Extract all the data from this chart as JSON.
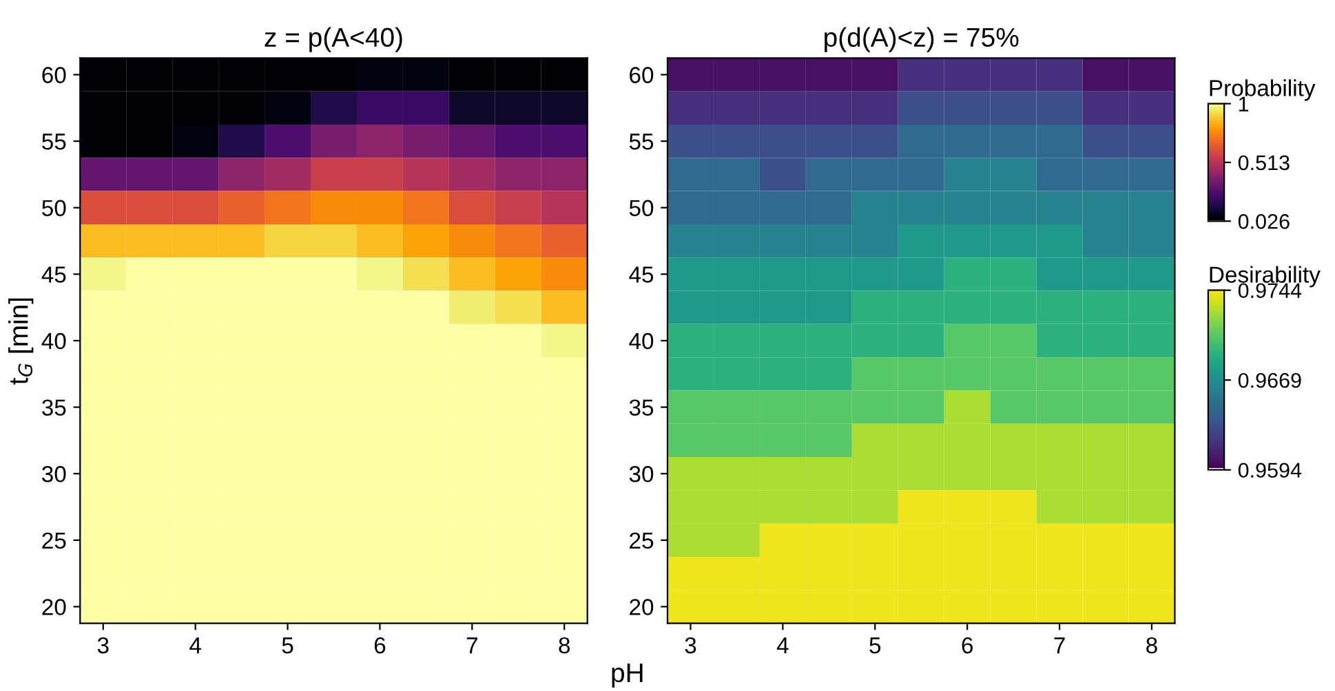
{
  "chart_data": [
    {
      "type": "heatmap",
      "title": "z = p(A<40)",
      "xlabel": "pH",
      "ylabel": "t$_{G}$ [min]",
      "clabel": "Probability",
      "categories": [
        "3",
        null,
        "4",
        null,
        "5",
        null,
        "6",
        null,
        "7",
        null,
        "8"
      ],
      "y_categories": [
        "60",
        null,
        "55",
        null,
        "50",
        null,
        "45",
        null,
        "40",
        null,
        "35",
        null,
        "30",
        null,
        "25",
        null,
        "20"
      ],
      "clim": [
        0.026,
        1
      ],
      "cticks": [
        0.026,
        0.513,
        1
      ],
      "cells": [
        [
          0.026,
          0.026,
          0.026,
          0.026,
          0.026,
          0.026,
          0.05,
          0.05,
          0.026,
          0.026,
          0.026
        ],
        [
          0.026,
          0.026,
          0.026,
          0.026,
          0.05,
          0.15,
          0.2,
          0.2,
          0.1,
          0.1,
          0.1
        ],
        [
          0.026,
          0.026,
          0.05,
          0.15,
          0.25,
          0.35,
          0.4,
          0.35,
          0.3,
          0.25,
          0.25
        ],
        [
          0.3,
          0.3,
          0.3,
          0.4,
          0.45,
          0.55,
          0.55,
          0.5,
          0.45,
          0.4,
          0.4
        ],
        [
          0.6,
          0.6,
          0.6,
          0.65,
          0.7,
          0.75,
          0.75,
          0.7,
          0.6,
          0.55,
          0.5
        ],
        [
          0.85,
          0.85,
          0.85,
          0.85,
          0.9,
          0.9,
          0.85,
          0.8,
          0.75,
          0.7,
          0.65
        ],
        [
          0.97,
          1,
          1,
          1,
          1,
          1,
          0.97,
          0.92,
          0.85,
          0.8,
          0.75
        ],
        [
          1,
          1,
          1,
          1,
          1,
          1,
          1,
          1,
          0.95,
          0.92,
          0.85
        ],
        [
          1,
          1,
          1,
          1,
          1,
          1,
          1,
          1,
          1,
          1,
          0.97
        ],
        [
          1,
          1,
          1,
          1,
          1,
          1,
          1,
          1,
          1,
          1,
          1
        ],
        [
          1,
          1,
          1,
          1,
          1,
          1,
          1,
          1,
          1,
          1,
          1
        ],
        [
          1,
          1,
          1,
          1,
          1,
          1,
          1,
          1,
          1,
          1,
          1
        ],
        [
          1,
          1,
          1,
          1,
          1,
          1,
          1,
          1,
          1,
          1,
          1
        ],
        [
          1,
          1,
          1,
          1,
          1,
          1,
          1,
          1,
          1,
          1,
          1
        ],
        [
          1,
          1,
          1,
          1,
          1,
          1,
          1,
          1,
          1,
          1,
          1
        ],
        [
          1,
          1,
          1,
          1,
          1,
          1,
          1,
          1,
          1,
          1,
          1
        ],
        [
          1,
          1,
          1,
          1,
          1,
          1,
          1,
          1,
          1,
          1,
          1
        ]
      ]
    },
    {
      "type": "heatmap",
      "title": "p(d(A)<z) = 75%",
      "clabel": "Desirability",
      "categories": [
        "3",
        null,
        "4",
        null,
        "5",
        null,
        "6",
        null,
        "7",
        null,
        "8"
      ],
      "y_categories": [
        "60",
        null,
        "55",
        null,
        "50",
        null,
        "45",
        null,
        "40",
        null,
        "35",
        null,
        "30",
        null,
        "25",
        null,
        "20"
      ],
      "clim": [
        0.9594,
        0.9744
      ],
      "cticks": [
        0.9594,
        0.9669,
        0.9744
      ],
      "cells": [
        [
          0.96,
          0.96,
          0.96,
          0.96,
          0.96,
          0.9615,
          0.9615,
          0.9615,
          0.9615,
          0.96,
          0.96
        ],
        [
          0.9615,
          0.9615,
          0.9615,
          0.9615,
          0.9615,
          0.963,
          0.963,
          0.963,
          0.963,
          0.9615,
          0.9615
        ],
        [
          0.963,
          0.963,
          0.963,
          0.963,
          0.963,
          0.9645,
          0.9645,
          0.9645,
          0.9645,
          0.963,
          0.963
        ],
        [
          0.9645,
          0.9645,
          0.963,
          0.9645,
          0.9645,
          0.9645,
          0.966,
          0.966,
          0.9645,
          0.9645,
          0.9645
        ],
        [
          0.9645,
          0.9645,
          0.9645,
          0.9645,
          0.966,
          0.966,
          0.966,
          0.966,
          0.966,
          0.966,
          0.966
        ],
        [
          0.966,
          0.966,
          0.966,
          0.966,
          0.966,
          0.9675,
          0.9675,
          0.9675,
          0.9675,
          0.966,
          0.966
        ],
        [
          0.9675,
          0.9675,
          0.9675,
          0.9675,
          0.9675,
          0.9675,
          0.969,
          0.969,
          0.9675,
          0.9675,
          0.9675
        ],
        [
          0.9675,
          0.9675,
          0.9675,
          0.9675,
          0.969,
          0.969,
          0.969,
          0.969,
          0.969,
          0.969,
          0.969
        ],
        [
          0.969,
          0.969,
          0.969,
          0.969,
          0.969,
          0.969,
          0.9705,
          0.9705,
          0.969,
          0.969,
          0.969
        ],
        [
          0.969,
          0.969,
          0.969,
          0.969,
          0.9705,
          0.9705,
          0.9705,
          0.9705,
          0.9705,
          0.9705,
          0.9705
        ],
        [
          0.9705,
          0.9705,
          0.9705,
          0.9705,
          0.9705,
          0.9705,
          0.9725,
          0.9705,
          0.9705,
          0.9705,
          0.9705
        ],
        [
          0.9705,
          0.9705,
          0.9705,
          0.9705,
          0.9725,
          0.9725,
          0.9725,
          0.9725,
          0.9725,
          0.9725,
          0.9725
        ],
        [
          0.9725,
          0.9725,
          0.9725,
          0.9725,
          0.9725,
          0.9725,
          0.9725,
          0.9725,
          0.9725,
          0.9725,
          0.9725
        ],
        [
          0.9725,
          0.9725,
          0.9725,
          0.9725,
          0.9725,
          0.974,
          0.974,
          0.974,
          0.9725,
          0.9725,
          0.9725
        ],
        [
          0.9725,
          0.9725,
          0.974,
          0.974,
          0.974,
          0.974,
          0.974,
          0.974,
          0.974,
          0.974,
          0.974
        ],
        [
          0.974,
          0.974,
          0.974,
          0.974,
          0.974,
          0.974,
          0.974,
          0.974,
          0.974,
          0.974,
          0.974
        ],
        [
          0.974,
          0.974,
          0.974,
          0.974,
          0.974,
          0.974,
          0.974,
          0.974,
          0.974,
          0.974,
          0.974
        ]
      ]
    }
  ]
}
